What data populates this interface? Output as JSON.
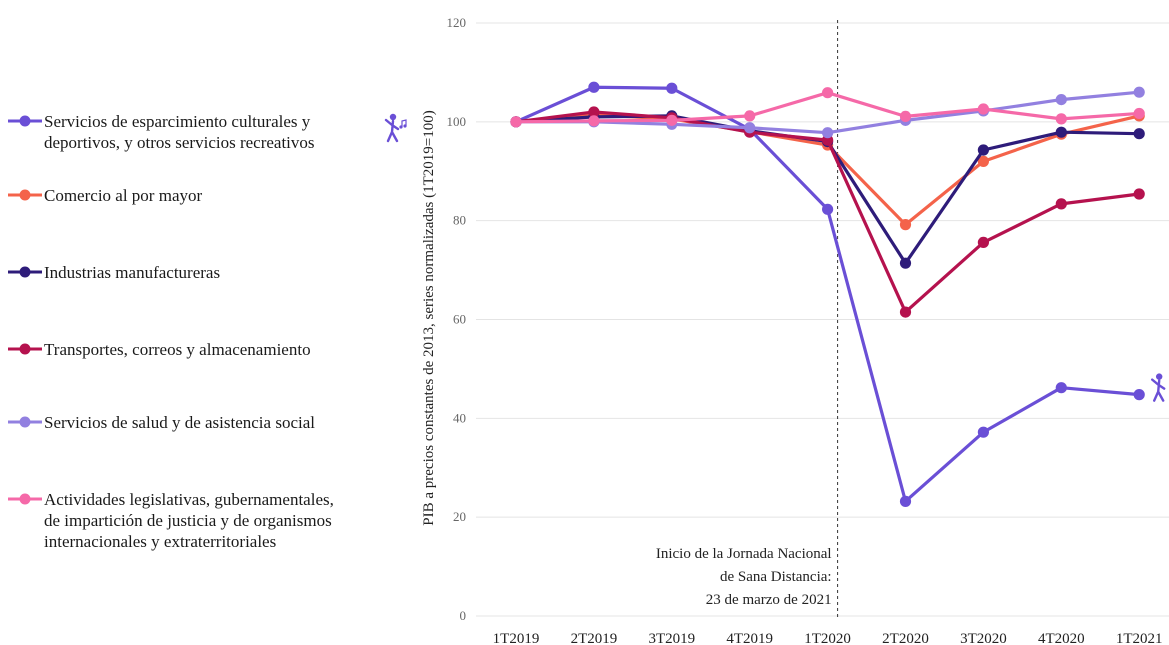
{
  "chart_data": {
    "type": "line",
    "ylabel": "PIB a precios constantes de 2013, series normalizadas (1T2019=100)",
    "xlabel": "",
    "ylim": [
      0,
      120
    ],
    "yticks": [
      0,
      20,
      40,
      60,
      80,
      100,
      120
    ],
    "categories": [
      "1T2019",
      "2T2019",
      "3T2019",
      "4T2019",
      "1T2020",
      "2T2020",
      "3T2020",
      "4T2020",
      "1T2021"
    ],
    "grid": "horizontal",
    "legend_placement": "left",
    "series": [
      {
        "name": "Servicios de esparcimiento culturales y\ndeportivos, y otros servicios recreativos",
        "color": "#6a4fd6",
        "values": [
          100,
          107,
          106.8,
          98.5,
          82.3,
          23.2,
          37.2,
          46.2,
          44.8
        ],
        "icon": "dancer-icon"
      },
      {
        "name": "Comercio al por mayor",
        "color": "#f4634a",
        "values": [
          100,
          101.4,
          100.6,
          98.0,
          95.3,
          79.2,
          92.0,
          97.5,
          101.2
        ]
      },
      {
        "name": "Industrias manufactureras",
        "color": "#2e1c7a",
        "values": [
          100,
          101.0,
          101.2,
          98.2,
          96.0,
          71.4,
          94.3,
          97.9,
          97.6
        ]
      },
      {
        "name": "Transportes, correos y almacenamiento",
        "color": "#b5124e",
        "values": [
          100,
          102.0,
          100.8,
          97.9,
          96.3,
          61.5,
          75.6,
          83.4,
          85.4
        ]
      },
      {
        "name": "Servicios de salud y de asistencia social",
        "color": "#9280e0",
        "values": [
          100,
          100.0,
          99.5,
          98.8,
          97.8,
          100.3,
          102.2,
          104.5,
          106.0
        ]
      },
      {
        "name": "Actividades legislativas, gubernamentales,\nde impartición de justicia y de organismos\ninternacionales y extraterritoriales",
        "color": "#f569a8",
        "values": [
          100,
          100.2,
          100.3,
          101.2,
          105.9,
          101.1,
          102.6,
          100.6,
          101.7
        ]
      }
    ],
    "annotation": {
      "at_category": "1T2020",
      "lines": [
        "Inicio de la Jornada Nacional",
        "de Sana Distancia:",
        "23 de marzo de 2021"
      ]
    }
  }
}
